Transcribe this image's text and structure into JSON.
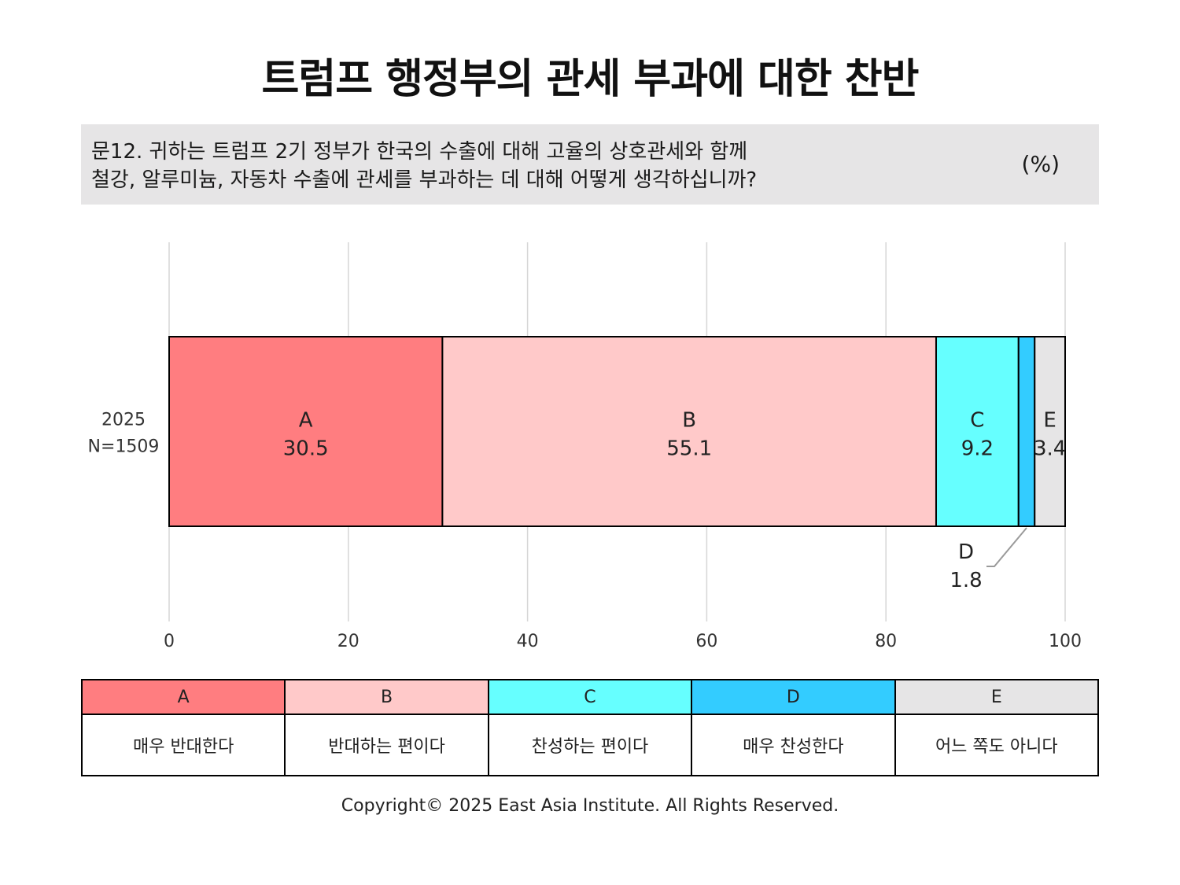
{
  "title": "트럼프 행정부의 관세 부과에 대한 찬반",
  "question": {
    "line1": "문12. 귀하는 트럼프 2기 정부가 한국의 수출에 대해 고율의 상호관세와 함께",
    "line2": "철강, 알루미늄, 자동차 수출에 관세를 부과하는 데 대해 어떻게 생각하십니까?",
    "unit": "(%)"
  },
  "chart_data": {
    "type": "bar",
    "orientation": "horizontal-stacked",
    "categories": [
      "2025\nN=1509"
    ],
    "category_lines": [
      "2025",
      "N=1509"
    ],
    "series": [
      {
        "key": "A",
        "name": "매우 반대한다",
        "values": [
          30.5
        ],
        "color": "#ff7d80"
      },
      {
        "key": "B",
        "name": "반대하는 편이다",
        "values": [
          55.1
        ],
        "color": "#ffc9c9"
      },
      {
        "key": "C",
        "name": "찬성하는 편이다",
        "values": [
          9.2
        ],
        "color": "#66ffff"
      },
      {
        "key": "D",
        "name": "매우 찬성한다",
        "values": [
          1.8
        ],
        "color": "#33ccff"
      },
      {
        "key": "E",
        "name": "어느 쪽도 아니다",
        "values": [
          3.4
        ],
        "color": "#e6e5e6"
      }
    ],
    "xlim": [
      0,
      100
    ],
    "xticks": [
      0,
      20,
      40,
      60,
      80,
      100
    ],
    "grid": true,
    "legend": "bottom-table"
  },
  "copyright": "Copyright© 2025 East Asia Institute. All Rights Reserved."
}
